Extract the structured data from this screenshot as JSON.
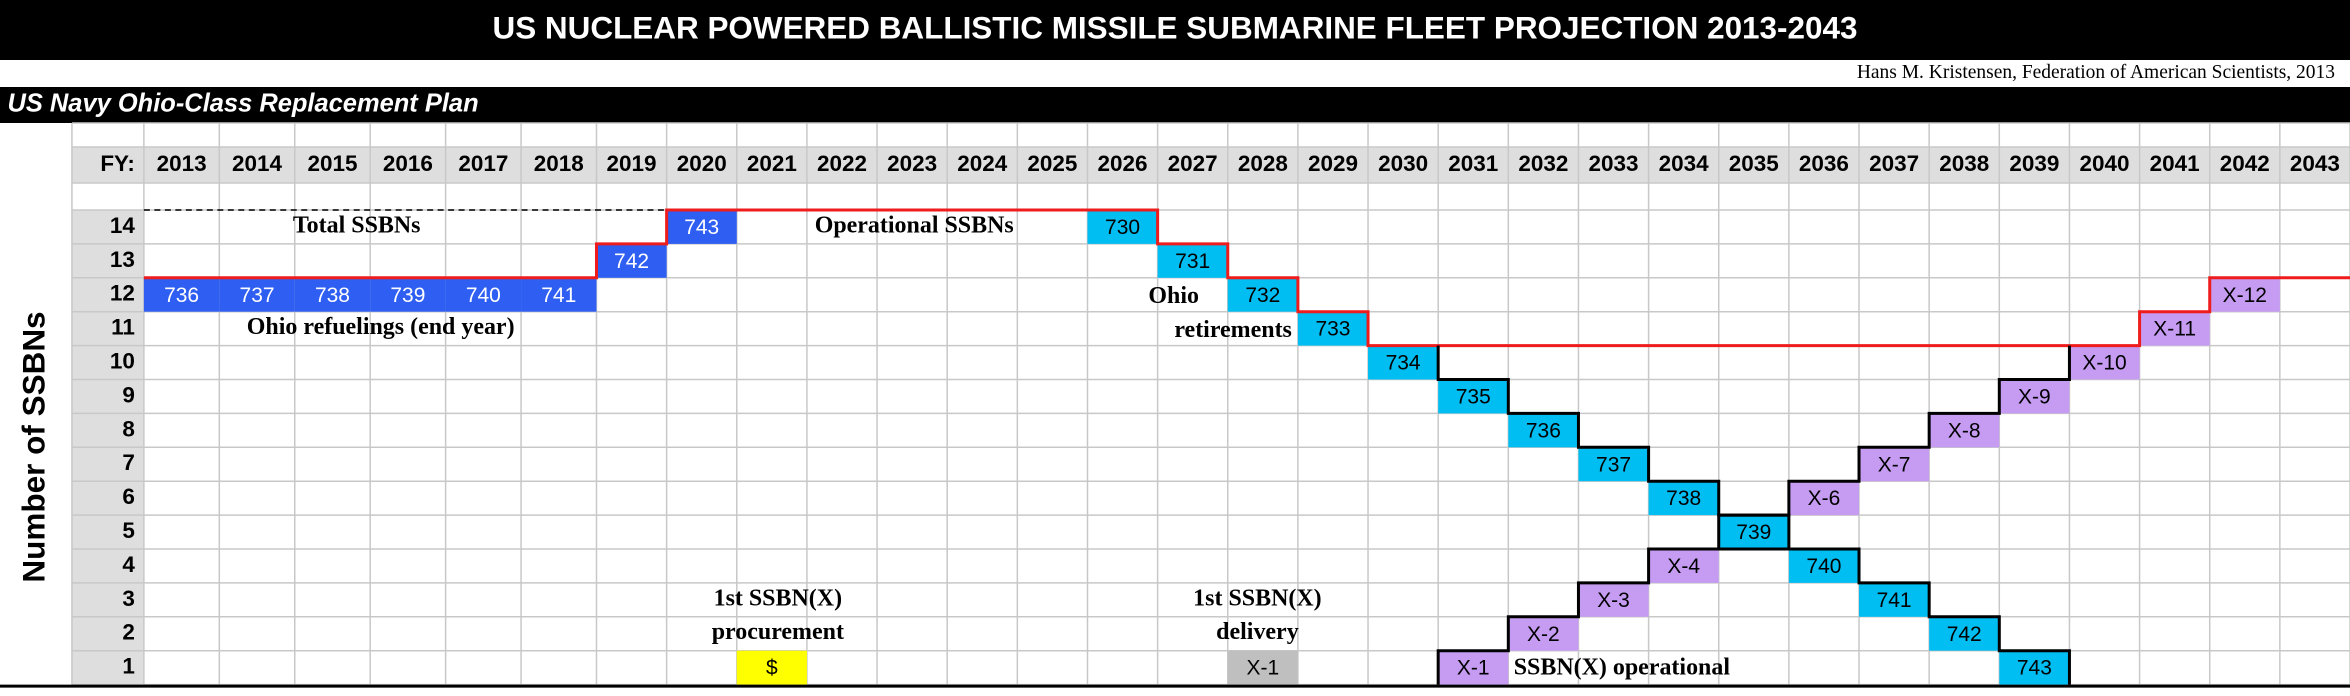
{
  "header": {
    "title": "US NUCLEAR POWERED BALLISTIC MISSILE SUBMARINE FLEET PROJECTION 2013-2043",
    "credit": "Hans M. Kristensen, Federation of American Scientists, 2013"
  },
  "subtitle": "US Navy Ohio-Class Replacement Plan",
  "fy_label": "FY:",
  "years": [
    2013,
    2014,
    2015,
    2016,
    2017,
    2018,
    2019,
    2020,
    2021,
    2022,
    2023,
    2024,
    2025,
    2026,
    2027,
    2028,
    2029,
    2030,
    2031,
    2032,
    2033,
    2034,
    2035,
    2036,
    2037,
    2038,
    2039,
    2040,
    2041,
    2042,
    2043
  ],
  "y_axis_label": "Number of SSBNs",
  "rows": [
    14,
    13,
    12,
    11,
    10,
    9,
    8,
    7,
    6,
    5,
    4,
    3,
    2,
    1
  ],
  "cells": [
    {
      "year": 2013,
      "count": 12,
      "label": "736",
      "color": "#2f5ef2"
    },
    {
      "year": 2014,
      "count": 12,
      "label": "737",
      "color": "#2f5ef2"
    },
    {
      "year": 2015,
      "count": 12,
      "label": "738",
      "color": "#2f5ef2"
    },
    {
      "year": 2016,
      "count": 12,
      "label": "739",
      "color": "#2f5ef2"
    },
    {
      "year": 2017,
      "count": 12,
      "label": "740",
      "color": "#2f5ef2"
    },
    {
      "year": 2018,
      "count": 12,
      "label": "741",
      "color": "#2f5ef2"
    },
    {
      "year": 2019,
      "count": 13,
      "label": "742",
      "color": "#2f5ef2"
    },
    {
      "year": 2020,
      "count": 14,
      "label": "743",
      "color": "#2f5ef2"
    },
    {
      "year": 2026,
      "count": 14,
      "label": "730",
      "color": "#00bdf2"
    },
    {
      "year": 2027,
      "count": 13,
      "label": "731",
      "color": "#00bdf2"
    },
    {
      "year": 2028,
      "count": 12,
      "label": "732",
      "color": "#00bdf2"
    },
    {
      "year": 2029,
      "count": 11,
      "label": "733",
      "color": "#00bdf2"
    },
    {
      "year": 2030,
      "count": 10,
      "label": "734",
      "color": "#00bdf2"
    },
    {
      "year": 2031,
      "count": 9,
      "label": "735",
      "color": "#00bdf2"
    },
    {
      "year": 2032,
      "count": 8,
      "label": "736",
      "color": "#00bdf2"
    },
    {
      "year": 2033,
      "count": 7,
      "label": "737",
      "color": "#00bdf2"
    },
    {
      "year": 2034,
      "count": 6,
      "label": "738",
      "color": "#00bdf2"
    },
    {
      "year": 2035,
      "count": 5,
      "label": "739",
      "color": "#00bdf2"
    },
    {
      "year": 2036,
      "count": 4,
      "label": "740",
      "color": "#00bdf2"
    },
    {
      "year": 2037,
      "count": 3,
      "label": "741",
      "color": "#00bdf2"
    },
    {
      "year": 2038,
      "count": 2,
      "label": "742",
      "color": "#00bdf2"
    },
    {
      "year": 2039,
      "count": 1,
      "label": "743",
      "color": "#00bdf2"
    },
    {
      "year": 2031,
      "count": 1,
      "label": "X-1",
      "color": "#c69cf2"
    },
    {
      "year": 2032,
      "count": 2,
      "label": "X-2",
      "color": "#c69cf2"
    },
    {
      "year": 2033,
      "count": 3,
      "label": "X-3",
      "color": "#c69cf2"
    },
    {
      "year": 2034,
      "count": 4,
      "label": "X-4",
      "color": "#c69cf2"
    },
    {
      "year": 2036,
      "count": 6,
      "label": "X-6",
      "color": "#c69cf2"
    },
    {
      "year": 2037,
      "count": 7,
      "label": "X-7",
      "color": "#c69cf2"
    },
    {
      "year": 2038,
      "count": 8,
      "label": "X-8",
      "color": "#c69cf2"
    },
    {
      "year": 2039,
      "count": 9,
      "label": "X-9",
      "color": "#c69cf2"
    },
    {
      "year": 2040,
      "count": 10,
      "label": "X-10",
      "color": "#c69cf2"
    },
    {
      "year": 2041,
      "count": 11,
      "label": "X-11",
      "color": "#c69cf2"
    },
    {
      "year": 2042,
      "count": 12,
      "label": "X-12",
      "color": "#c69cf2"
    },
    {
      "year": 2021,
      "count": 1,
      "label": "$",
      "color": "#ffff00"
    },
    {
      "year": 2028,
      "count": 1,
      "label": "X-1",
      "color": "#bfbfbf"
    }
  ],
  "annotations": [
    [
      "Total SSBNs"
    ],
    [
      "Operational SSBNs"
    ],
    [
      "Ohio refuelings (end year)"
    ],
    [
      "Ohio",
      "retirements"
    ],
    [
      "1st SSBN(X)",
      "procurement"
    ],
    [
      "1st SSBN(X)",
      "delivery"
    ],
    [
      "SSBN(X) operational"
    ]
  ]
}
